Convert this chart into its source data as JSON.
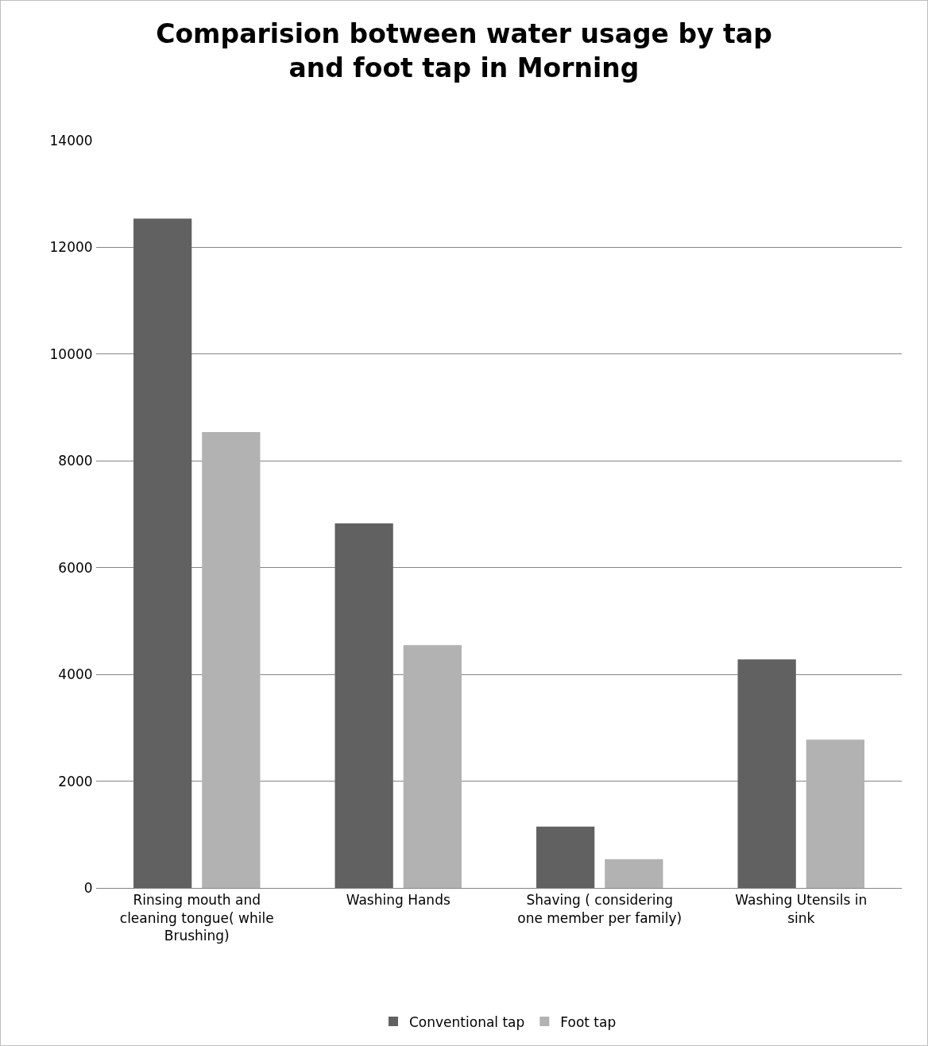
{
  "chart_data": {
    "type": "bar",
    "title": "Comparision botween water usage by tap and foot tap in Morning",
    "categories": [
      "Rinsing mouth and cleaning tongue( while Brushing)",
      "Washing Hands",
      "Shaving ( considering one member per family)",
      "Washing Utensils in sink"
    ],
    "series": [
      {
        "name": "Conventional tap",
        "color": "#616161",
        "values": [
          12540,
          6830,
          1150,
          4280
        ]
      },
      {
        "name": "Foot tap",
        "color": "#b2b2b2",
        "values": [
          8540,
          4550,
          540,
          2780
        ]
      }
    ],
    "ylim": [
      0,
      14000
    ],
    "yticks": [
      0,
      2000,
      4000,
      6000,
      8000,
      10000,
      12000,
      14000
    ],
    "grid": "y",
    "legend": "bottom"
  }
}
